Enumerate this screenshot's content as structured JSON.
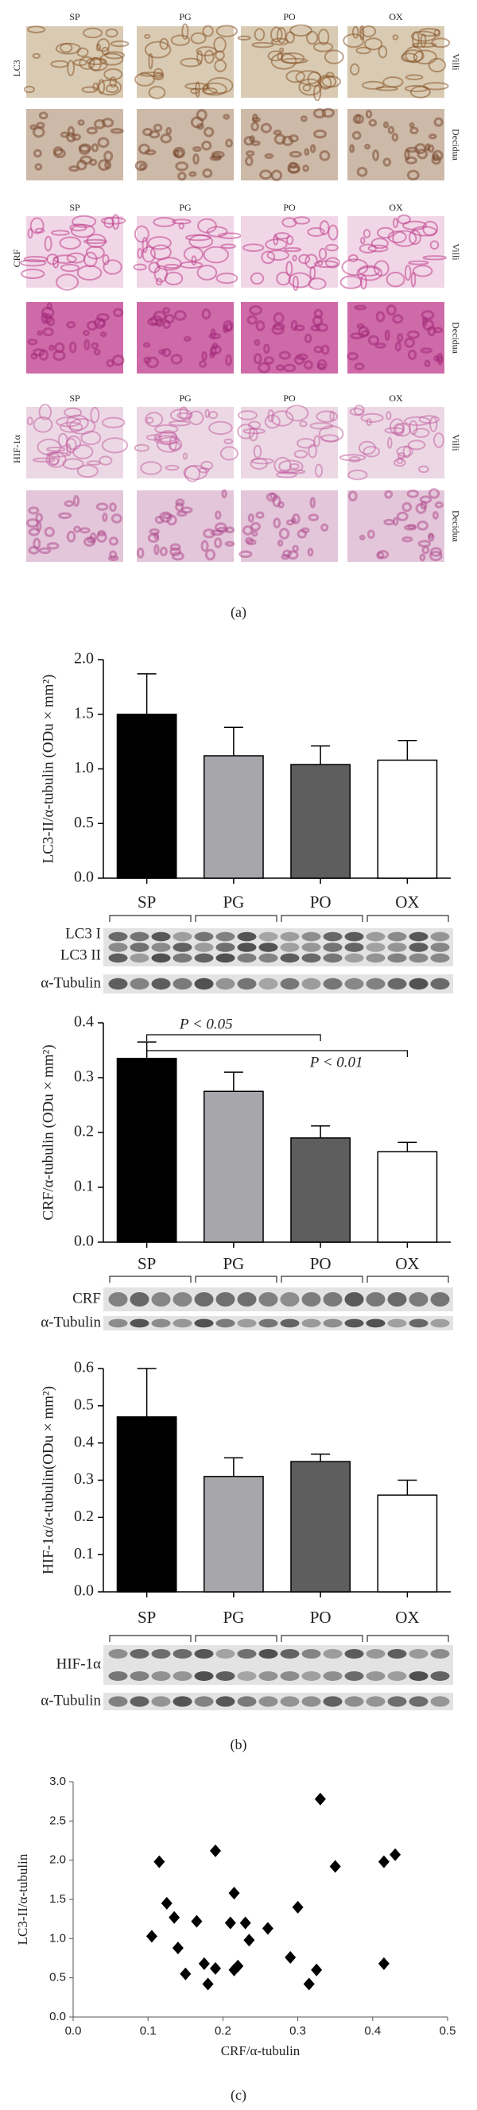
{
  "panel_a": {
    "label": "(a)",
    "groups": [
      {
        "marker": "LC3",
        "columns": [
          "SP",
          "PG",
          "PO",
          "OX"
        ],
        "rows": [
          "Villi",
          "Decidua"
        ]
      },
      {
        "marker": "CRF",
        "columns": [
          "SP",
          "PG",
          "PO",
          "OX"
        ],
        "rows": [
          "Villi",
          "Decidua"
        ]
      },
      {
        "marker": "HIF-1α",
        "columns": [
          "SP",
          "PG",
          "PO",
          "OX"
        ],
        "rows": [
          "Villi",
          "Decidua"
        ]
      }
    ]
  },
  "chart_data": [
    {
      "type": "bar",
      "ylabel": "LC3-II/α-tubulin (ODu × mm²)",
      "categories": [
        "SP",
        "PG",
        "PO",
        "OX"
      ],
      "values": [
        1.5,
        1.12,
        1.04,
        1.08
      ],
      "errors": [
        0.37,
        0.26,
        0.17,
        0.18
      ],
      "colors": [
        "#000000",
        "#a7a7ab",
        "#5e5e5e",
        "#ffffff"
      ],
      "ylim": [
        0,
        2.0
      ],
      "yticks": [
        {
          "value": 0,
          "label": "0.0"
        },
        {
          "value": 0.5,
          "label": "0.5"
        },
        {
          "value": 1,
          "label": "1.0"
        },
        {
          "value": 1.5,
          "label": "1.5"
        },
        {
          "value": 2,
          "label": "2.0"
        }
      ]
    },
    {
      "type": "bar",
      "ylabel": "CRF/α-tubulin (ODu × mm²)",
      "categories": [
        "SP",
        "PG",
        "PO",
        "OX"
      ],
      "values": [
        0.335,
        0.275,
        0.19,
        0.165
      ],
      "errors": [
        0.03,
        0.035,
        0.022,
        0.017
      ],
      "colors": [
        "#000000",
        "#a7a7ab",
        "#5e5e5e",
        "#ffffff"
      ],
      "ylim": [
        0,
        0.4
      ],
      "yticks": [
        {
          "value": 0,
          "label": "0.0"
        },
        0.1,
        0.2,
        0.3,
        0.4
      ],
      "annotations": [
        "P < 0.05",
        "P < 0.01"
      ]
    },
    {
      "type": "bar",
      "ylabel": "HIF-1α/α-tubulin(ODu × mm²)",
      "categories": [
        "SP",
        "PG",
        "PO",
        "OX"
      ],
      "values": [
        0.47,
        0.31,
        0.35,
        0.26
      ],
      "errors": [
        0.13,
        0.05,
        0.02,
        0.04
      ],
      "colors": [
        "#000000",
        "#a7a7ab",
        "#5e5e5e",
        "#ffffff"
      ],
      "ylim": [
        0,
        0.6
      ],
      "yticks": [
        {
          "value": 0,
          "label": "0.0"
        },
        0.1,
        0.2,
        0.3,
        0.4,
        0.5,
        0.6
      ]
    },
    {
      "type": "scatter",
      "xlabel": "CRF/α-tubulin",
      "ylabel": "LC3-II/α-tubulin",
      "color": "#000000",
      "x": [
        0.105,
        0.115,
        0.125,
        0.135,
        0.14,
        0.15,
        0.165,
        0.175,
        0.18,
        0.19,
        0.19,
        0.21,
        0.215,
        0.215,
        0.22,
        0.23,
        0.235,
        0.26,
        0.29,
        0.3,
        0.315,
        0.325,
        0.33,
        0.35,
        0.415,
        0.415,
        0.43
      ],
      "values": [
        1.03,
        1.98,
        1.45,
        1.27,
        0.88,
        0.55,
        1.22,
        0.68,
        0.42,
        2.12,
        0.62,
        1.2,
        1.58,
        0.6,
        0.65,
        1.2,
        0.98,
        1.13,
        0.76,
        1.4,
        0.42,
        0.6,
        2.78,
        1.92,
        1.98,
        0.68,
        2.07
      ],
      "xlim": [
        0,
        0.5
      ],
      "xticks": [
        {
          "value": 0,
          "label": "0.0"
        },
        0.1,
        0.2,
        0.3,
        0.4,
        0.5
      ],
      "ylim": [
        0,
        3.0
      ],
      "yticks": [
        {
          "value": 0,
          "label": "0.0"
        },
        {
          "value": 0.5,
          "label": "0.5"
        },
        {
          "value": 1,
          "label": "1.0"
        },
        {
          "value": 1.5,
          "label": "1.5"
        },
        {
          "value": 2,
          "label": "2.0"
        },
        {
          "value": 2.5,
          "label": "2.5"
        },
        {
          "value": 3,
          "label": "3.0"
        }
      ]
    }
  ],
  "blots": [
    {
      "labels": [
        "LC3 I",
        "LC3 II",
        "α-Tubulin"
      ]
    },
    {
      "labels": [
        "CRF",
        "α-Tubulin"
      ]
    },
    {
      "labels": [
        "HIF-1α",
        "α-Tubulin"
      ]
    }
  ],
  "panel_labels": {
    "b": "(b)",
    "c": "(c)"
  }
}
